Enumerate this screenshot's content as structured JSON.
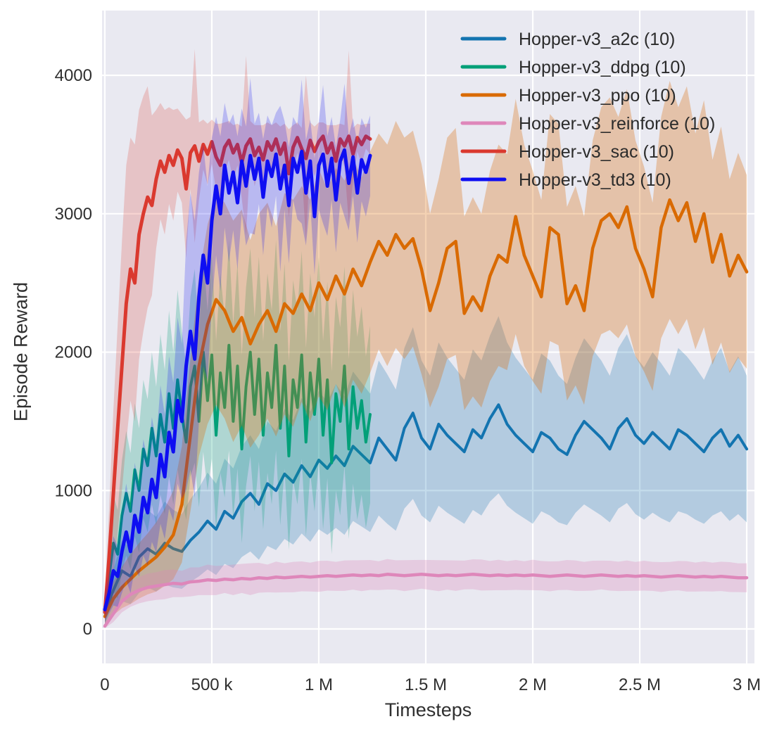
{
  "figure": {
    "kind": "training-curves-plot"
  },
  "chart_data": {
    "type": "line",
    "title": "",
    "xlabel": "Timesteps",
    "ylabel": "Episode Reward",
    "grid": true,
    "legend_position": "upper right",
    "panel_bg": "#e9e9f1",
    "grid_color": "#ffffff",
    "text_color": "#2f2f2f",
    "xlim": [
      -13000,
      3036000
    ],
    "ylim": [
      -249,
      4468
    ],
    "x_ticks": [
      {
        "v": 0,
        "label": "0"
      },
      {
        "v": 500000,
        "label": "500 k"
      },
      {
        "v": 1000000,
        "label": "1 M"
      },
      {
        "v": 1500000,
        "label": "1.5 M"
      },
      {
        "v": 2000000,
        "label": "2 M"
      },
      {
        "v": 2500000,
        "label": "2.5 M"
      },
      {
        "v": 3000000,
        "label": "3 M"
      }
    ],
    "y_ticks": [
      {
        "v": 0,
        "label": "0"
      },
      {
        "v": 1000,
        "label": "1000"
      },
      {
        "v": 2000,
        "label": "2000"
      },
      {
        "v": 3000,
        "label": "3000"
      },
      {
        "v": 4000,
        "label": "4000"
      }
    ],
    "series": [
      {
        "id": "a2c",
        "name": "Hopper-v3_a2c (10)",
        "color": "#1374b0",
        "line_width": 4,
        "band_opacity": 0.25,
        "x_start": 0,
        "x_end": 3000000,
        "values": [
          120,
          280,
          420,
          380,
          520,
          580,
          540,
          620,
          580,
          560,
          640,
          700,
          780,
          720,
          850,
          800,
          920,
          980,
          900,
          1050,
          1000,
          1120,
          1060,
          1180,
          1100,
          1220,
          1160,
          1250,
          1180,
          1320,
          1260,
          1200,
          1380,
          1300,
          1220,
          1450,
          1560,
          1380,
          1300,
          1480,
          1400,
          1340,
          1280,
          1440,
          1380,
          1520,
          1620,
          1480,
          1400,
          1340,
          1280,
          1420,
          1380,
          1300,
          1260,
          1400,
          1500,
          1440,
          1380,
          1300,
          1450,
          1520,
          1400,
          1340,
          1420,
          1360,
          1300,
          1440,
          1400,
          1340,
          1280,
          1380,
          1440,
          1320,
          1400,
          1300
        ],
        "spread": [
          80,
          150,
          220,
          200,
          260,
          280,
          270,
          300,
          280,
          270,
          300,
          320,
          350,
          330,
          380,
          360,
          400,
          420,
          400,
          450,
          430,
          470,
          450,
          490,
          470,
          500,
          480,
          520,
          500,
          540,
          520,
          500,
          560,
          540,
          510,
          580,
          620,
          560,
          530,
          590,
          560,
          540,
          520,
          580,
          560,
          600,
          640,
          590,
          560,
          540,
          520,
          570,
          560,
          530,
          510,
          560,
          600,
          580,
          560,
          530,
          580,
          610,
          570,
          550,
          580,
          560,
          530,
          590,
          570,
          550,
          520,
          560,
          590,
          540,
          570,
          530
        ]
      },
      {
        "id": "ddpg",
        "name": "Hopper-v3_ddpg (10)",
        "color": "#02a078",
        "line_width": 4,
        "band_opacity": 0.25,
        "x_start": 0,
        "x_end": 1240000,
        "values": [
          150,
          380,
          620,
          540,
          820,
          980,
          850,
          1150,
          1000,
          1300,
          1180,
          1450,
          1250,
          1550,
          1350,
          1700,
          1450,
          1800,
          1550,
          1350,
          1750,
          1900,
          1500,
          2000,
          1650,
          1980,
          1400,
          1850,
          1600,
          2050,
          1500,
          1900,
          1300,
          1750,
          2000,
          1550,
          1950,
          1400,
          1850,
          1600,
          2050,
          1450,
          1900,
          1250,
          1800,
          1600,
          1980,
          1350,
          1850,
          1550,
          1950,
          1400,
          1800,
          1200,
          1700,
          1500,
          1900,
          1300,
          1750,
          1450,
          1650,
          1350,
          1550
        ],
        "spread": [
          100,
          250,
          350,
          320,
          400,
          450,
          420,
          480,
          450,
          500,
          480,
          550,
          500,
          580,
          520,
          600,
          550,
          650,
          600,
          560,
          650,
          700,
          620,
          720,
          650,
          750,
          680,
          720,
          650,
          760,
          700,
          740,
          680,
          720,
          750,
          700,
          740,
          680,
          720,
          700,
          760,
          700,
          740,
          680,
          720,
          700,
          750,
          680,
          720,
          700,
          740,
          680,
          710,
          660,
          700,
          680,
          720,
          650,
          700,
          660,
          680,
          620,
          640
        ]
      },
      {
        "id": "ppo",
        "name": "Hopper-v3_ppo (10)",
        "color": "#d96a02",
        "line_width": 4.5,
        "band_opacity": 0.3,
        "x_start": 0,
        "x_end": 3000000,
        "values": [
          90,
          220,
          300,
          360,
          420,
          470,
          520,
          590,
          680,
          900,
          1400,
          1900,
          2200,
          2380,
          2300,
          2150,
          2250,
          2060,
          2200,
          2300,
          2150,
          2350,
          2280,
          2420,
          2300,
          2500,
          2380,
          2550,
          2420,
          2600,
          2480,
          2650,
          2800,
          2700,
          2850,
          2750,
          2820,
          2600,
          2300,
          2500,
          2750,
          2800,
          2280,
          2400,
          2300,
          2550,
          2700,
          2650,
          2980,
          2700,
          2550,
          2400,
          2900,
          2850,
          2350,
          2480,
          2300,
          2750,
          2950,
          3000,
          2900,
          3050,
          2750,
          2600,
          2400,
          2900,
          3100,
          2950,
          3080,
          2800,
          3000,
          2650,
          2850,
          2550,
          2700,
          2580
        ],
        "spread": [
          60,
          120,
          150,
          180,
          200,
          220,
          250,
          280,
          320,
          420,
          550,
          650,
          720,
          760,
          780,
          800,
          780,
          750,
          800,
          780,
          760,
          800,
          820,
          780,
          800,
          820,
          800,
          780,
          820,
          800,
          780,
          800,
          780,
          800,
          820,
          800,
          780,
          760,
          700,
          750,
          800,
          820,
          700,
          720,
          700,
          760,
          800,
          780,
          850,
          800,
          760,
          700,
          820,
          800,
          700,
          720,
          680,
          780,
          820,
          840,
          800,
          850,
          780,
          740,
          680,
          800,
          860,
          820,
          840,
          780,
          820,
          740,
          780,
          700,
          740,
          700
        ]
      },
      {
        "id": "reinforce",
        "name": "Hopper-v3_reinforce (10)",
        "color": "#de87ba",
        "line_width": 4.5,
        "band_opacity": 0.3,
        "x_start": 0,
        "x_end": 3000000,
        "values": [
          20,
          110,
          200,
          250,
          280,
          300,
          310,
          320,
          330,
          325,
          340,
          345,
          355,
          350,
          360,
          355,
          365,
          360,
          370,
          365,
          375,
          370,
          375,
          380,
          375,
          380,
          385,
          380,
          385,
          390,
          385,
          390,
          385,
          395,
          390,
          385,
          390,
          395,
          390,
          385,
          390,
          385,
          390,
          395,
          390,
          385,
          390,
          385,
          390,
          385,
          390,
          385,
          380,
          385,
          390,
          385,
          380,
          385,
          390,
          385,
          380,
          385,
          380,
          385,
          380,
          375,
          380,
          385,
          380,
          375,
          380,
          375,
          380,
          375,
          370,
          370
        ],
        "spread": [
          15,
          60,
          80,
          90,
          95,
          100,
          100,
          105,
          100,
          95,
          105,
          100,
          110,
          105,
          100,
          110,
          105,
          115,
          108,
          100,
          112,
          105,
          110,
          108,
          104,
          112,
          108,
          105,
          110,
          106,
          112,
          108,
          104,
          110,
          106,
          112,
          108,
          104,
          108,
          112,
          106,
          110,
          104,
          108,
          112,
          106,
          110,
          105,
          108,
          104,
          110,
          106,
          108,
          104,
          108,
          110,
          105,
          108,
          104,
          108,
          106,
          110,
          104,
          108,
          105,
          108,
          104,
          106,
          110,
          105,
          108,
          104,
          106,
          108,
          104,
          105
        ]
      },
      {
        "id": "sac",
        "name": "Hopper-v3_sac (10)",
        "color": "#da392f",
        "line_width": 5,
        "band_opacity": 0.22,
        "x_start": 0,
        "x_end": 1240000,
        "values": [
          120,
          520,
          980,
          1450,
          1900,
          2350,
          2600,
          2500,
          2850,
          3000,
          3120,
          3060,
          3250,
          3380,
          3300,
          3420,
          3350,
          3460,
          3400,
          3180,
          3440,
          3490,
          3380,
          3500,
          3430,
          3520,
          3410,
          3350,
          3480,
          3530,
          3440,
          3500,
          3370,
          3490,
          3540,
          3420,
          3480,
          3390,
          3520,
          3460,
          3540,
          3430,
          3510,
          3290,
          3480,
          3550,
          3470,
          3400,
          3530,
          3450,
          3520,
          3560,
          3440,
          3510,
          3380,
          3540,
          3490,
          3560,
          3430,
          3550,
          3500,
          3560,
          3540
        ],
        "spread": [
          80,
          350,
          600,
          750,
          900,
          1000,
          950,
          1000,
          900,
          850,
          800,
          650,
          500,
          420,
          450,
          350,
          400,
          300,
          320,
          500,
          260,
          700,
          280,
          180,
          220,
          160,
          240,
          300,
          180,
          140,
          200,
          150,
          260,
          650,
          130,
          220,
          160,
          250,
          140,
          180,
          120,
          200,
          140,
          320,
          160,
          110,
          150,
          600,
          130,
          180,
          140,
          100,
          200,
          130,
          260,
          110,
          150,
          620,
          190,
          100,
          140,
          90,
          110
        ]
      },
      {
        "id": "td3",
        "name": "Hopper-v3_td3 (10)",
        "color": "#0e0ef2",
        "line_width": 5,
        "band_opacity": 0.22,
        "x_start": 0,
        "x_end": 1240000,
        "values": [
          140,
          260,
          420,
          380,
          560,
          700,
          560,
          820,
          700,
          950,
          840,
          1080,
          950,
          1260,
          1100,
          1420,
          1280,
          1650,
          1500,
          1900,
          2150,
          1950,
          2400,
          2700,
          2500,
          2950,
          3200,
          3000,
          3350,
          3150,
          3300,
          3080,
          3380,
          3200,
          3420,
          3250,
          3400,
          3120,
          3380,
          3270,
          3430,
          3180,
          3350,
          3060,
          3400,
          3300,
          3450,
          3150,
          3380,
          2980,
          3350,
          3430,
          3200,
          3400,
          3100,
          3380,
          3460,
          3220,
          3410,
          3150,
          3390,
          3300,
          3420
        ],
        "spread": [
          100,
          150,
          250,
          220,
          300,
          350,
          300,
          380,
          320,
          420,
          380,
          450,
          400,
          500,
          450,
          550,
          500,
          600,
          560,
          900,
          1000,
          1000,
          900,
          800,
          700,
          600,
          500,
          560,
          450,
          500,
          420,
          480,
          380,
          430,
          560,
          400,
          330,
          420,
          330,
          370,
          300,
          600,
          320,
          420,
          300,
          340,
          520,
          380,
          300,
          420,
          320,
          500,
          360,
          300,
          380,
          300,
          480,
          340,
          280,
          360,
          300,
          320,
          290
        ]
      }
    ]
  }
}
